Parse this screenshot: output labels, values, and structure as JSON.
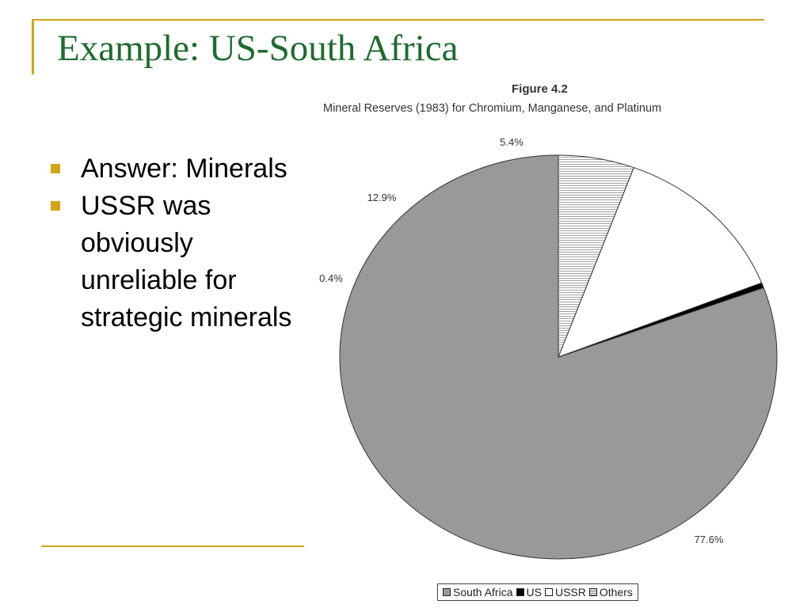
{
  "slide": {
    "title": "Example: US-South Africa",
    "bullets": [
      "Answer: Minerals",
      "USSR was obviously unreliable for strategic minerals"
    ],
    "accent_color": "#d4a418",
    "title_color": "#1f6b2f"
  },
  "chart_data": {
    "type": "pie",
    "figure_label": "Figure 4.2",
    "title": "Mineral Reserves (1983) for Chromium, Manganese, and Platinum",
    "slices": [
      {
        "name": "South Africa",
        "value": 77.6,
        "label": "77.6%",
        "color": "#999999",
        "pattern": "solid"
      },
      {
        "name": "US",
        "value": 0.4,
        "label": "0.4%",
        "color": "#000000",
        "pattern": "solid"
      },
      {
        "name": "USSR",
        "value": 12.9,
        "label": "12.9%",
        "color": "#ffffff",
        "pattern": "solid"
      },
      {
        "name": "Others",
        "value": 5.4,
        "label": "5.4%",
        "color": "#ffffff",
        "pattern": "horizontal-lines"
      }
    ],
    "legend": {
      "position": "bottom",
      "entries": [
        "South Africa",
        "US",
        "USSR",
        "Others"
      ]
    }
  }
}
